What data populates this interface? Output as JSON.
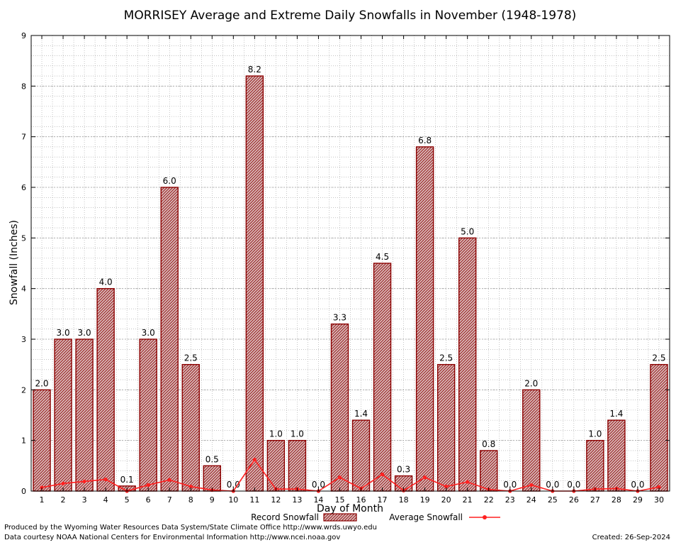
{
  "chart_data": {
    "type": "bar",
    "title": "MORRISEY Average and Extreme Daily Snowfalls in November (1948-1978)",
    "xlabel": "Day of Month",
    "ylabel": "Snowfall (Inches)",
    "ylim": [
      0,
      9
    ],
    "yticks": [
      "0",
      "1",
      "2",
      "3",
      "4",
      "5",
      "6",
      "7",
      "8",
      "9"
    ],
    "categories": [
      "1",
      "2",
      "3",
      "4",
      "5",
      "6",
      "7",
      "8",
      "9",
      "10",
      "11",
      "12",
      "13",
      "14",
      "15",
      "16",
      "17",
      "18",
      "19",
      "20",
      "21",
      "22",
      "23",
      "24",
      "25",
      "26",
      "27",
      "28",
      "29",
      "30"
    ],
    "series": [
      {
        "name": "Record Snowfall",
        "kind": "bar",
        "values": [
          2.0,
          3.0,
          3.0,
          4.0,
          0.1,
          3.0,
          6.0,
          2.5,
          0.5,
          0.0,
          8.2,
          1.0,
          1.0,
          0.0,
          3.3,
          1.4,
          4.5,
          0.3,
          6.8,
          2.5,
          5.0,
          0.8,
          0.0,
          2.0,
          0.0,
          0.0,
          1.0,
          1.4,
          0.0,
          2.5
        ],
        "labels": [
          "2.0",
          "3.0",
          "3.0",
          "4.0",
          "0.1",
          "3.0",
          "6.0",
          "2.5",
          "0.5",
          "0.0",
          "8.2",
          "1.0",
          "1.0",
          "0.0",
          "3.3",
          "1.4",
          "4.5",
          "0.3",
          "6.8",
          "2.5",
          "5.0",
          "0.8",
          "0.0",
          "2.0",
          "0.0",
          "0.0",
          "1.0",
          "1.4",
          "0.0",
          "2.5"
        ]
      },
      {
        "name": "Average Snowfall",
        "kind": "line",
        "values": [
          0.07,
          0.15,
          0.19,
          0.23,
          0.0,
          0.12,
          0.22,
          0.09,
          0.02,
          0.0,
          0.62,
          0.04,
          0.04,
          0.0,
          0.27,
          0.05,
          0.33,
          0.01,
          0.27,
          0.09,
          0.18,
          0.03,
          0.0,
          0.12,
          0.0,
          0.0,
          0.04,
          0.05,
          0.0,
          0.08
        ]
      }
    ],
    "colors": {
      "bar_fill": "#c9a0a0",
      "bar_stroke": "#8b0000",
      "line": "#ff2020",
      "grid": "#a0a0a0"
    },
    "grid": true,
    "legend": "bottom-center"
  },
  "footer": {
    "produced_by": "Produced by the Wyoming Water Resources Data System/State Climate Office http://www.wrds.uwyo.edu",
    "courtesy": "Data courtesy NOAA National Centers for Environmental Information http://www.ncei.noaa.gov",
    "created": "Created:  26-Sep-2024"
  }
}
